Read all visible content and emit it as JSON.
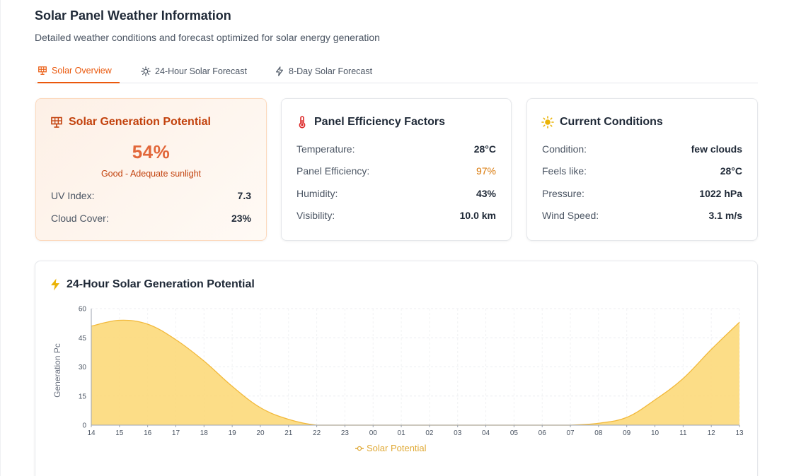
{
  "page": {
    "title": "Solar Panel Weather Information",
    "subtitle": "Detailed weather conditions and forecast optimized for solar energy generation"
  },
  "tabs": [
    {
      "label": "Solar Overview",
      "icon": "solar-panel-icon",
      "active": true
    },
    {
      "label": "24-Hour Solar Forecast",
      "icon": "sun-icon",
      "active": false
    },
    {
      "label": "8-Day Solar Forecast",
      "icon": "lightning-icon",
      "active": false
    }
  ],
  "colors": {
    "accent": "#ea580c",
    "accent_text": "#c2410c",
    "chart_fill": "#fcd97a",
    "chart_stroke": "#f2b93b",
    "amber": "#d97706"
  },
  "solar_potential": {
    "title": "Solar Generation Potential",
    "icon": "solar-panel-icon",
    "percent": "54%",
    "caption": "Good - Adequate sunlight",
    "rows": [
      {
        "label": "UV Index:",
        "value": "7.3"
      },
      {
        "label": "Cloud Cover:",
        "value": "23%"
      }
    ]
  },
  "efficiency": {
    "title": "Panel Efficiency Factors",
    "icon": "thermometer-icon",
    "rows": [
      {
        "label": "Temperature:",
        "value": "28°C"
      },
      {
        "label": "Panel Efficiency:",
        "value": "97%"
      },
      {
        "label": "Humidity:",
        "value": "43%"
      },
      {
        "label": "Visibility:",
        "value": "10.0 km"
      }
    ]
  },
  "conditions": {
    "title": "Current Conditions",
    "icon": "sun-icon",
    "rows": [
      {
        "label": "Condition:",
        "value": "few clouds"
      },
      {
        "label": "Feels like:",
        "value": "28°C"
      },
      {
        "label": "Pressure:",
        "value": "1022 hPa"
      },
      {
        "label": "Wind Speed:",
        "value": "3.1 m/s"
      }
    ]
  },
  "chart_section": {
    "title": "24-Hour Solar Generation Potential",
    "icon": "lightning-icon"
  },
  "chart_data": {
    "type": "area",
    "ylabel": "Generation Pc",
    "x": [
      "14",
      "15",
      "16",
      "17",
      "18",
      "19",
      "20",
      "21",
      "22",
      "23",
      "00",
      "01",
      "02",
      "03",
      "04",
      "05",
      "06",
      "07",
      "08",
      "09",
      "10",
      "11",
      "12",
      "13"
    ],
    "series": [
      {
        "name": "Solar Potential",
        "values": [
          51,
          54,
          52,
          44,
          33,
          20,
          9,
          3,
          0,
          0,
          0,
          0,
          0,
          0,
          0,
          0,
          0,
          0,
          1,
          4,
          13,
          24,
          39,
          53
        ]
      }
    ],
    "ylim": [
      0,
      60
    ],
    "yticks": [
      0,
      15,
      30,
      45,
      60
    ],
    "grid": true,
    "legend": "bottom"
  }
}
